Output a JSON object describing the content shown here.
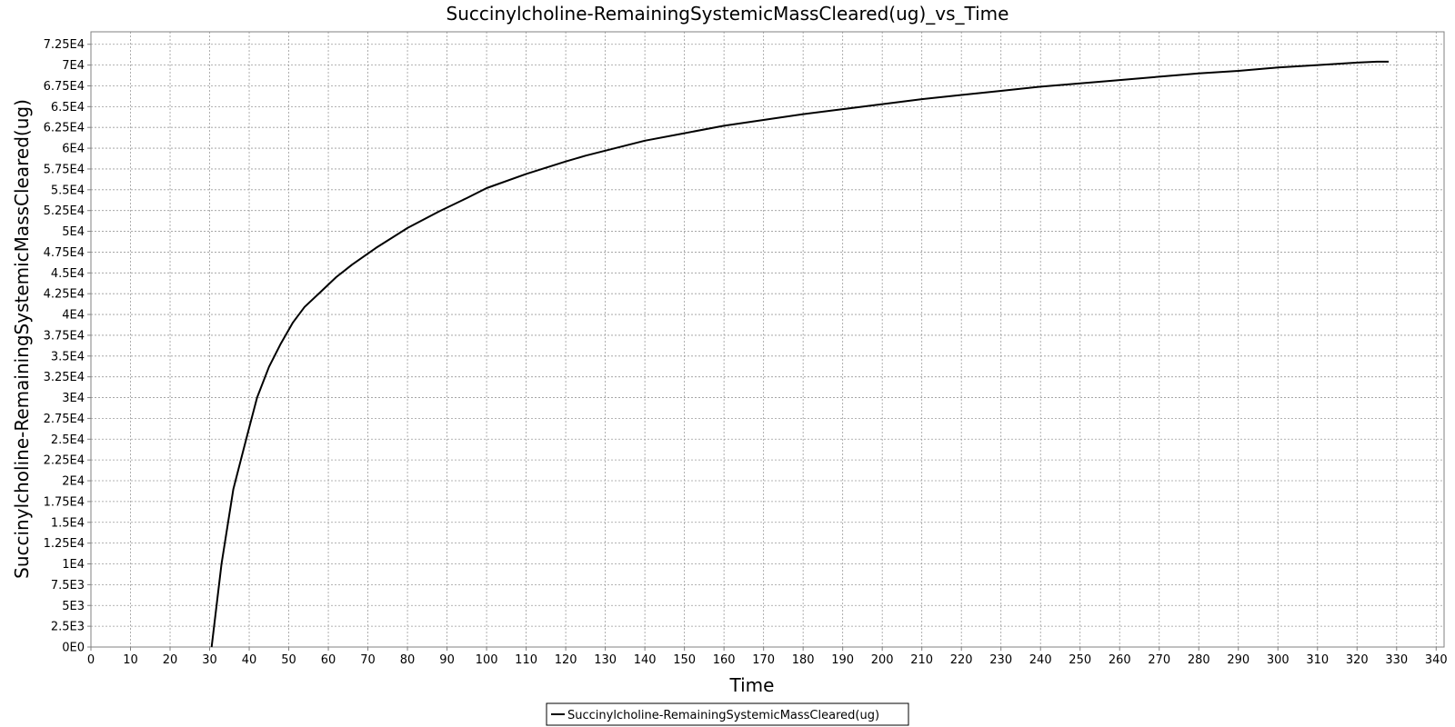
{
  "chart_data": {
    "type": "line",
    "title": "Succinylcholine-RemainingSystemicMassCleared(ug)_vs_Time",
    "xlabel": "Time",
    "ylabel": "Succinylcholine-RemainingSystemicMassCleared(ug)",
    "xlim": [
      0,
      342
    ],
    "ylim": [
      0,
      74000
    ],
    "x_ticks": [
      0,
      10,
      20,
      30,
      40,
      50,
      60,
      70,
      80,
      90,
      100,
      110,
      120,
      130,
      140,
      150,
      160,
      170,
      180,
      190,
      200,
      210,
      220,
      230,
      240,
      250,
      260,
      270,
      280,
      290,
      300,
      310,
      320,
      330,
      340
    ],
    "x_tick_labels": [
      "0",
      "10",
      "20",
      "30",
      "40",
      "50",
      "60",
      "70",
      "80",
      "90",
      "100",
      "110",
      "120",
      "130",
      "140",
      "150",
      "160",
      "170",
      "180",
      "190",
      "200",
      "210",
      "220",
      "230",
      "240",
      "250",
      "260",
      "270",
      "280",
      "290",
      "300",
      "310",
      "320",
      "330",
      "340"
    ],
    "y_ticks": [
      0,
      2500,
      5000,
      7500,
      10000,
      12500,
      15000,
      17500,
      20000,
      22500,
      25000,
      27500,
      30000,
      32500,
      35000,
      37500,
      40000,
      42500,
      45000,
      47500,
      50000,
      52500,
      55000,
      57500,
      60000,
      62500,
      65000,
      67500,
      70000,
      72500
    ],
    "y_tick_labels": [
      "0E0",
      "2.5E3",
      "5E3",
      "7.5E3",
      "1E4",
      "1.25E4",
      "1.5E4",
      "1.75E4",
      "2E4",
      "2.25E4",
      "2.5E4",
      "2.75E4",
      "3E4",
      "3.25E4",
      "3.5E4",
      "3.75E4",
      "4E4",
      "4.25E4",
      "4.5E4",
      "4.75E4",
      "5E4",
      "5.25E4",
      "5.5E4",
      "5.75E4",
      "6E4",
      "6.25E4",
      "6.5E4",
      "6.75E4",
      "7E4",
      "7.25E4"
    ],
    "grid": true,
    "legend_position": "bottom-center",
    "series": [
      {
        "name": "Succinylcholine-RemainingSystemicMassCleared(ug)",
        "color": "#000000",
        "x": [
          30.5,
          33,
          36,
          39.5,
          42,
          45,
          48,
          51,
          54,
          58,
          62,
          66,
          72,
          80,
          88,
          95,
          100,
          110,
          120,
          125,
          130,
          140,
          150,
          160,
          170,
          180,
          190,
          200,
          210,
          220,
          230,
          240,
          250,
          260,
          270,
          280,
          290,
          300,
          310,
          320,
          325,
          328
        ],
        "y": [
          0,
          10000,
          19000,
          25500,
          30000,
          33700,
          36500,
          39000,
          40900,
          42700,
          44500,
          46000,
          48000,
          50400,
          52400,
          54000,
          55200,
          56900,
          58400,
          59100,
          59700,
          60900,
          61800,
          62700,
          63400,
          64100,
          64700,
          65300,
          65900,
          66400,
          66900,
          67400,
          67800,
          68200,
          68600,
          69000,
          69300,
          69700,
          70000,
          70300,
          70400,
          70400
        ]
      }
    ]
  }
}
